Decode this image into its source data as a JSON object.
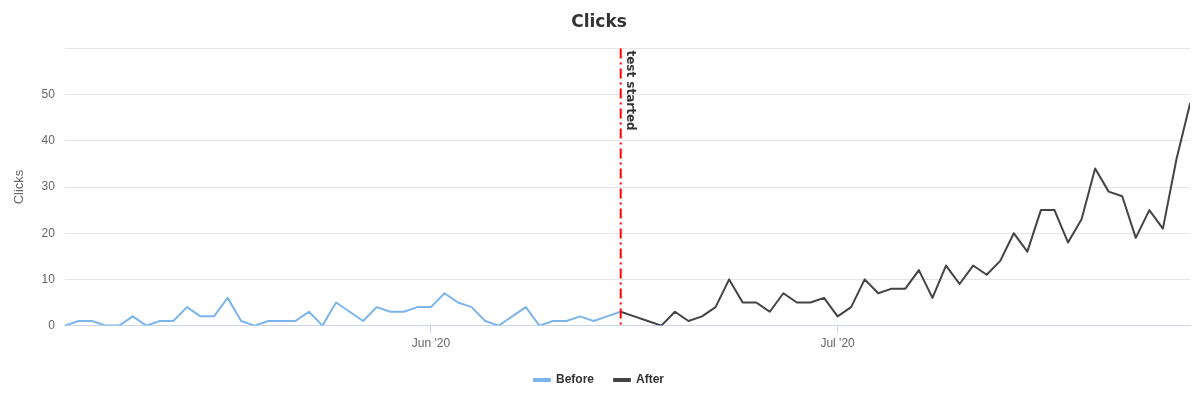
{
  "chart_data": {
    "type": "line",
    "title": "Clicks",
    "ylabel": "Clicks",
    "xlim": [
      "2020-05-05",
      "2020-07-27"
    ],
    "xticks": [
      {
        "value": "2020-06-01",
        "label": "Jun '20"
      },
      {
        "value": "2020-07-01",
        "label": "Jul '20"
      }
    ],
    "ylim": [
      0,
      60
    ],
    "yticks": [
      0,
      10,
      20,
      30,
      40,
      50,
      {
        "value": 60,
        "label": null
      }
    ],
    "grid": "y",
    "legend": "bottom",
    "marker": "none",
    "line_style": "solid",
    "ref_lines": [
      {
        "axis": "x",
        "value": "2020-06-15",
        "label": "test started",
        "color": "#ff0000",
        "line_style": "dashdot"
      }
    ],
    "series": [
      {
        "name": "Before",
        "color": "#7cb5ec",
        "x": [
          "2020-05-05",
          "2020-05-06",
          "2020-05-07",
          "2020-05-08",
          "2020-05-09",
          "2020-05-10",
          "2020-05-11",
          "2020-05-12",
          "2020-05-13",
          "2020-05-14",
          "2020-05-15",
          "2020-05-16",
          "2020-05-17",
          "2020-05-18",
          "2020-05-19",
          "2020-05-20",
          "2020-05-21",
          "2020-05-22",
          "2020-05-23",
          "2020-05-24",
          "2020-05-25",
          "2020-05-26",
          "2020-05-27",
          "2020-05-28",
          "2020-05-29",
          "2020-05-30",
          "2020-05-31",
          "2020-06-01",
          "2020-06-02",
          "2020-06-03",
          "2020-06-04",
          "2020-06-05",
          "2020-06-06",
          "2020-06-07",
          "2020-06-08",
          "2020-06-09",
          "2020-06-10",
          "2020-06-11",
          "2020-06-12",
          "2020-06-13",
          "2020-06-14",
          "2020-06-15"
        ],
        "values": [
          0,
          1,
          1,
          0,
          0,
          2,
          0,
          1,
          1,
          4,
          2,
          2,
          6,
          1,
          0,
          1,
          1,
          1,
          3,
          0,
          5,
          3,
          1,
          4,
          3,
          3,
          4,
          4,
          7,
          5,
          4,
          1,
          0,
          2,
          4,
          0,
          1,
          1,
          2,
          1,
          2,
          3
        ]
      },
      {
        "name": "After",
        "color": "#434348",
        "x": [
          "2020-06-15",
          "2020-06-16",
          "2020-06-17",
          "2020-06-18",
          "2020-06-19",
          "2020-06-20",
          "2020-06-21",
          "2020-06-22",
          "2020-06-23",
          "2020-06-24",
          "2020-06-25",
          "2020-06-26",
          "2020-06-27",
          "2020-06-28",
          "2020-06-29",
          "2020-06-30",
          "2020-07-01",
          "2020-07-02",
          "2020-07-03",
          "2020-07-04",
          "2020-07-05",
          "2020-07-06",
          "2020-07-07",
          "2020-07-08",
          "2020-07-09",
          "2020-07-10",
          "2020-07-11",
          "2020-07-12",
          "2020-07-13",
          "2020-07-14",
          "2020-07-15",
          "2020-07-16",
          "2020-07-17",
          "2020-07-18",
          "2020-07-19",
          "2020-07-20",
          "2020-07-21",
          "2020-07-22",
          "2020-07-23",
          "2020-07-24",
          "2020-07-25",
          "2020-07-26",
          "2020-07-27"
        ],
        "values": [
          3,
          2,
          1,
          0,
          3,
          1,
          2,
          4,
          10,
          5,
          5,
          3,
          7,
          5,
          5,
          6,
          2,
          4,
          10,
          7,
          8,
          8,
          12,
          6,
          13,
          9,
          13,
          11,
          14,
          20,
          16,
          25,
          25,
          18,
          23,
          34,
          29,
          28,
          19,
          25,
          21,
          36,
          48
        ]
      }
    ]
  }
}
